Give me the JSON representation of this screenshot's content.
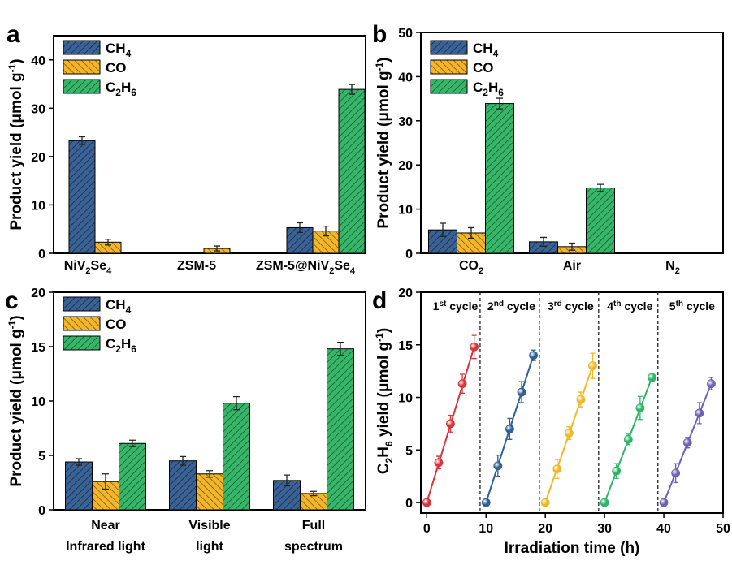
{
  "colors": {
    "ch4": "#3a6294",
    "co": "#f3b52a",
    "c2h6": "#37b66a",
    "cycle_colors": [
      "#d6363b",
      "#2f5f96",
      "#f0b823",
      "#2eb56a",
      "#6f5fb6"
    ]
  },
  "legend": [
    "CH4",
    "CO",
    "C2H6"
  ],
  "chart_data": [
    {
      "panel": "a",
      "type": "bar",
      "ylabel": "Product yield (μmol g-1)",
      "ylim": [
        0,
        45
      ],
      "yticks": [
        0,
        10,
        20,
        30,
        40
      ],
      "categories": [
        "NiV2Se4",
        "ZSM-5",
        "ZSM-5@NiV2Se4"
      ],
      "series": [
        {
          "name": "CH4",
          "values": [
            23.3,
            0,
            5.3
          ],
          "errors": [
            0.8,
            0,
            1.0
          ]
        },
        {
          "name": "CO",
          "values": [
            2.3,
            1.0,
            4.6
          ],
          "errors": [
            0.6,
            0.5,
            1.0
          ]
        },
        {
          "name": "C2H6",
          "values": [
            0,
            0,
            33.9
          ],
          "errors": [
            0,
            0,
            1.0
          ]
        }
      ]
    },
    {
      "panel": "b",
      "type": "bar",
      "ylabel": "Product yield (μmol g-1)",
      "ylim": [
        0,
        50
      ],
      "yticks": [
        0,
        10,
        20,
        30,
        40,
        50
      ],
      "categories": [
        "CO2",
        "Air",
        "N2"
      ],
      "series": [
        {
          "name": "CH4",
          "values": [
            5.3,
            2.6,
            0
          ],
          "errors": [
            1.5,
            1.0,
            0
          ]
        },
        {
          "name": "CO",
          "values": [
            4.6,
            1.5,
            0
          ],
          "errors": [
            1.2,
            0.8,
            0
          ]
        },
        {
          "name": "C2H6",
          "values": [
            33.9,
            14.8,
            0
          ],
          "errors": [
            1.2,
            0.8,
            0
          ]
        }
      ]
    },
    {
      "panel": "c",
      "type": "bar",
      "ylabel": "Product yield (μmol g-1)",
      "ylim": [
        0,
        20
      ],
      "yticks": [
        0,
        5,
        10,
        15,
        20
      ],
      "categories": [
        "Near Infrared light",
        "Visible light",
        "Full spectrum"
      ],
      "series": [
        {
          "name": "CH4",
          "values": [
            4.4,
            4.5,
            2.7
          ],
          "errors": [
            0.3,
            0.4,
            0.5
          ]
        },
        {
          "name": "CO",
          "values": [
            2.6,
            3.3,
            1.5
          ],
          "errors": [
            0.7,
            0.3,
            0.2
          ]
        },
        {
          "name": "C2H6",
          "values": [
            6.1,
            9.8,
            14.8
          ],
          "errors": [
            0.3,
            0.6,
            0.6
          ]
        }
      ]
    },
    {
      "panel": "d",
      "type": "line",
      "xlabel": "Irradiation time (h)",
      "ylabel": "C2H6 yield (μmol g-1)",
      "xlim": [
        -1,
        50
      ],
      "ylim": [
        -1,
        20
      ],
      "xticks": [
        0,
        10,
        20,
        30,
        40,
        50
      ],
      "yticks": [
        0,
        5,
        10,
        15,
        20
      ],
      "dividers": [
        9,
        19,
        29,
        39
      ],
      "series": [
        {
          "name": "1st cycle",
          "x": [
            0,
            2,
            4,
            6,
            8
          ],
          "y": [
            0,
            3.8,
            7.5,
            11.3,
            14.8
          ],
          "errors": [
            0,
            0.6,
            0.8,
            0.9,
            1.1
          ]
        },
        {
          "name": "2nd cycle",
          "x": [
            10,
            12,
            14,
            16,
            18
          ],
          "y": [
            0,
            3.5,
            7.0,
            10.5,
            14.0
          ],
          "errors": [
            0,
            1.0,
            1.0,
            1.0,
            0.5
          ]
        },
        {
          "name": "3rd cycle",
          "x": [
            20,
            22,
            24,
            26,
            28
          ],
          "y": [
            0,
            3.2,
            6.6,
            9.8,
            13.0
          ],
          "errors": [
            0,
            0.9,
            0.6,
            0.7,
            1.2
          ]
        },
        {
          "name": "4th cycle",
          "x": [
            30,
            32,
            34,
            36,
            38
          ],
          "y": [
            0,
            3.0,
            6.0,
            9.0,
            11.9
          ],
          "errors": [
            0,
            0.7,
            0.5,
            1.1,
            0.4
          ]
        },
        {
          "name": "5th cycle",
          "x": [
            40,
            42,
            44,
            46,
            48
          ],
          "y": [
            0,
            2.8,
            5.7,
            8.5,
            11.3
          ],
          "errors": [
            0,
            0.9,
            0.5,
            1.0,
            0.6
          ]
        }
      ]
    }
  ]
}
